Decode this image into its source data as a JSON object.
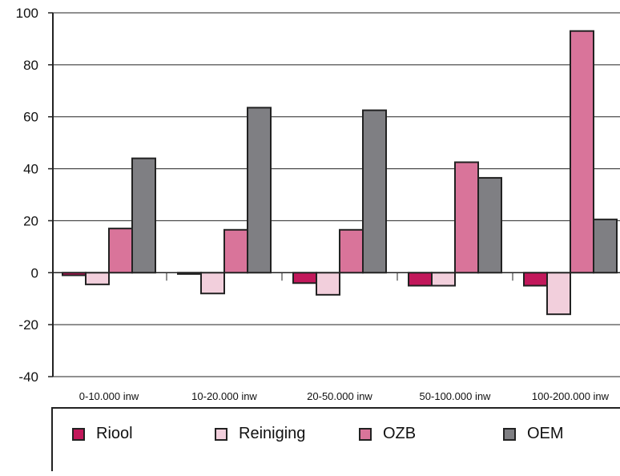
{
  "chart_data": {
    "type": "bar",
    "categories": [
      "0-10.000 inw",
      "10-20.000 inw",
      "20-50.000 inw",
      "50-100.000 inw",
      "100-200.000 inw"
    ],
    "series": [
      {
        "name": "Riool",
        "values": [
          -1,
          -0.5,
          -4,
          -5,
          -5
        ],
        "color": "#c2185b"
      },
      {
        "name": "Reiniging",
        "values": [
          -4.5,
          -8,
          -8.5,
          -5,
          -16
        ],
        "color": "#f2cfdc"
      },
      {
        "name": "OZB",
        "values": [
          17,
          16.5,
          16.5,
          42.5,
          93
        ],
        "color": "#d9749a"
      },
      {
        "name": "OEM",
        "values": [
          44,
          63.5,
          62.5,
          36.5,
          20.5
        ],
        "color": "#7f7f83"
      }
    ],
    "yticks": [
      "-40",
      "-20",
      "0",
      "20",
      "40",
      "60",
      "80",
      "100"
    ],
    "ylim": [
      -40,
      100
    ],
    "grid": true,
    "legend_position": "bottom"
  }
}
